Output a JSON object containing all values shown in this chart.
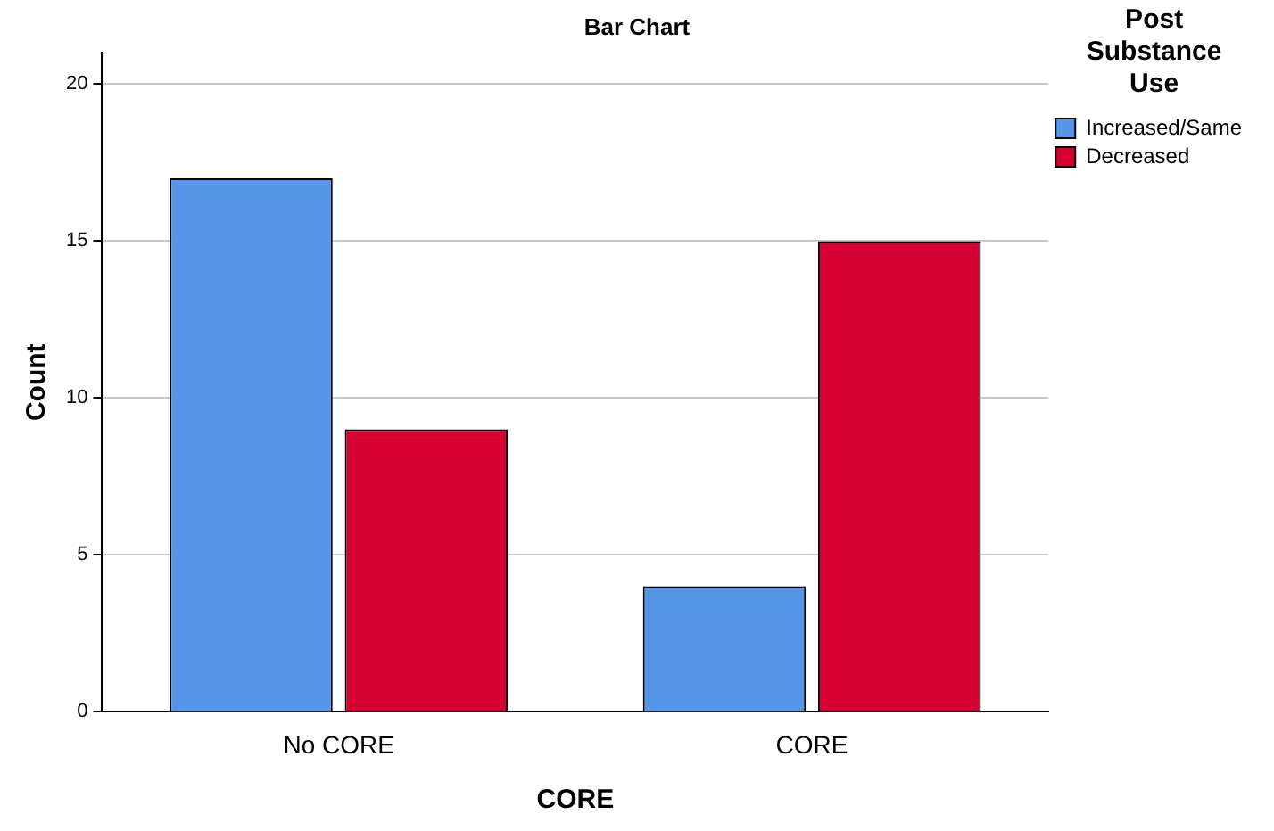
{
  "chart_data": {
    "type": "bar",
    "title": "Bar Chart",
    "xlabel": "CORE",
    "ylabel": "Count",
    "legend_title": "Post Substance Use",
    "categories": [
      "No CORE",
      "CORE"
    ],
    "series": [
      {
        "name": "Increased/Same",
        "color": "#5596e6",
        "values": [
          17,
          4
        ]
      },
      {
        "name": "Decreased",
        "color": "#d70033",
        "values": [
          9,
          15
        ]
      }
    ],
    "ylim": [
      0,
      21
    ],
    "yticks": [
      0,
      5,
      10,
      15,
      20
    ],
    "grid": "y",
    "legend": "top right"
  }
}
